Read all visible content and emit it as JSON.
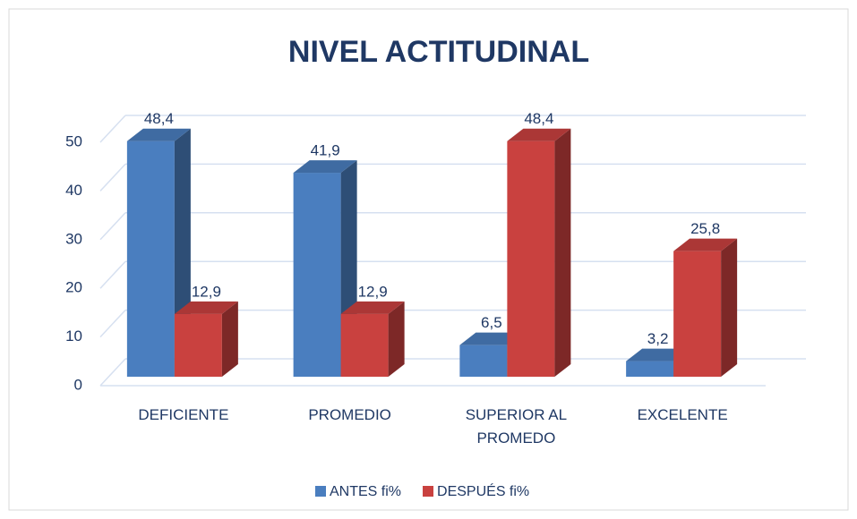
{
  "chart_data": {
    "type": "bar3d",
    "title": "NIVEL ACTITUDINAL",
    "categories": [
      "DEFICIENTE",
      "PROMEDIO",
      "SUPERIOR AL PROMEDO",
      "EXCELENTE"
    ],
    "series": [
      {
        "name": "ANTES fi%",
        "color": "#4a7ebf",
        "values": [
          48.4,
          41.9,
          6.5,
          3.2
        ],
        "value_labels": [
          "48,4",
          "41,9",
          "6,5",
          "3,2"
        ]
      },
      {
        "name": "DESPUÉS fi%",
        "color": "#c9413f",
        "values": [
          12.9,
          12.9,
          48.4,
          25.8
        ],
        "value_labels": [
          "12,9",
          "12,9",
          "48,4",
          "25,8"
        ]
      }
    ],
    "ylim": [
      0,
      50
    ],
    "yticks": [
      0,
      10,
      20,
      30,
      40,
      50
    ],
    "grid": true,
    "legend": "bottom"
  }
}
